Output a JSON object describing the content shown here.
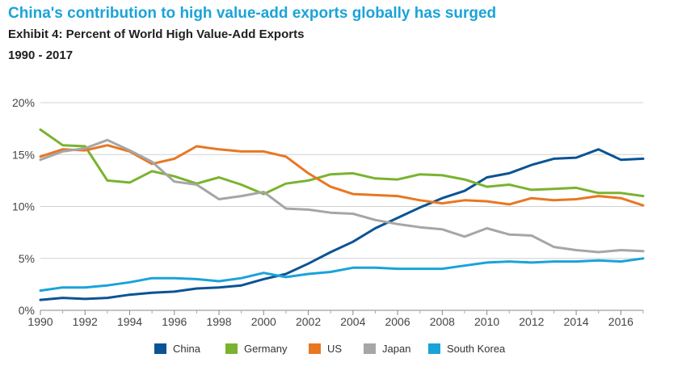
{
  "header": {
    "headline": "China's contribution to high value-add exports globally has surged",
    "exhibit": "Exhibit 4: Percent of World High Value-Add Exports",
    "range": "1990 - 2017"
  },
  "chart_data": {
    "type": "line",
    "title": "Exhibit 4: Percent of World High Value-Add Exports",
    "subtitle": "1990 - 2017",
    "xlabel": "",
    "ylabel": "",
    "x": [
      1990,
      1991,
      1992,
      1993,
      1994,
      1995,
      1996,
      1997,
      1998,
      1999,
      2000,
      2001,
      2002,
      2003,
      2004,
      2005,
      2006,
      2007,
      2008,
      2009,
      2010,
      2011,
      2012,
      2013,
      2014,
      2015,
      2016,
      2017
    ],
    "xlim": [
      1990,
      2017
    ],
    "ylim": [
      0,
      20
    ],
    "x_ticks": [
      1990,
      1992,
      1994,
      1996,
      1998,
      2000,
      2002,
      2004,
      2006,
      2008,
      2010,
      2012,
      2014,
      2016
    ],
    "x_tick_labels": [
      "1990",
      "1992",
      "1994",
      "1996",
      "1998",
      "2000",
      "2002",
      "2004",
      "2006",
      "2008",
      "2010",
      "2012",
      "2014",
      "2016"
    ],
    "y_ticks": [
      0,
      5,
      10,
      15,
      20
    ],
    "y_tick_labels": [
      "0%",
      "5%",
      "10%",
      "15%",
      "20%"
    ],
    "grid": "horizontal",
    "legend_position": "bottom",
    "series": [
      {
        "name": "China",
        "color": "#0b5394",
        "values": [
          1.0,
          1.2,
          1.1,
          1.2,
          1.5,
          1.7,
          1.8,
          2.1,
          2.2,
          2.4,
          3.0,
          3.5,
          4.5,
          5.6,
          6.6,
          7.9,
          8.9,
          9.9,
          10.8,
          11.5,
          12.8,
          13.2,
          14.0,
          14.6,
          14.7,
          15.5,
          14.5,
          14.6
        ]
      },
      {
        "name": "Germany",
        "color": "#7ab32e",
        "values": [
          17.4,
          15.9,
          15.8,
          12.5,
          12.3,
          13.4,
          12.9,
          12.2,
          12.8,
          12.1,
          11.2,
          12.2,
          12.5,
          13.1,
          13.2,
          12.7,
          12.6,
          13.1,
          13.0,
          12.6,
          11.9,
          12.1,
          11.6,
          11.7,
          11.8,
          11.3,
          11.3,
          11.0
        ]
      },
      {
        "name": "US",
        "color": "#e87722",
        "values": [
          14.8,
          15.5,
          15.4,
          15.9,
          15.3,
          14.1,
          14.6,
          15.8,
          15.5,
          15.3,
          15.3,
          14.8,
          13.2,
          11.9,
          11.2,
          11.1,
          11.0,
          10.6,
          10.3,
          10.6,
          10.5,
          10.2,
          10.8,
          10.6,
          10.7,
          11.0,
          10.8,
          10.1
        ]
      },
      {
        "name": "Japan",
        "color": "#a6a6a6",
        "values": [
          14.5,
          15.3,
          15.6,
          16.4,
          15.4,
          14.3,
          12.4,
          12.1,
          10.7,
          11.0,
          11.4,
          9.8,
          9.7,
          9.4,
          9.3,
          8.7,
          8.3,
          8.0,
          7.8,
          7.1,
          7.9,
          7.3,
          7.2,
          6.1,
          5.8,
          5.6,
          5.8,
          5.7
        ]
      },
      {
        "name": "South Korea",
        "color": "#1aa3d9",
        "values": [
          1.9,
          2.2,
          2.2,
          2.4,
          2.7,
          3.1,
          3.1,
          3.0,
          2.8,
          3.1,
          3.6,
          3.2,
          3.5,
          3.7,
          4.1,
          4.1,
          4.0,
          4.0,
          4.0,
          4.3,
          4.6,
          4.7,
          4.6,
          4.7,
          4.7,
          4.8,
          4.7,
          5.0
        ]
      }
    ]
  }
}
